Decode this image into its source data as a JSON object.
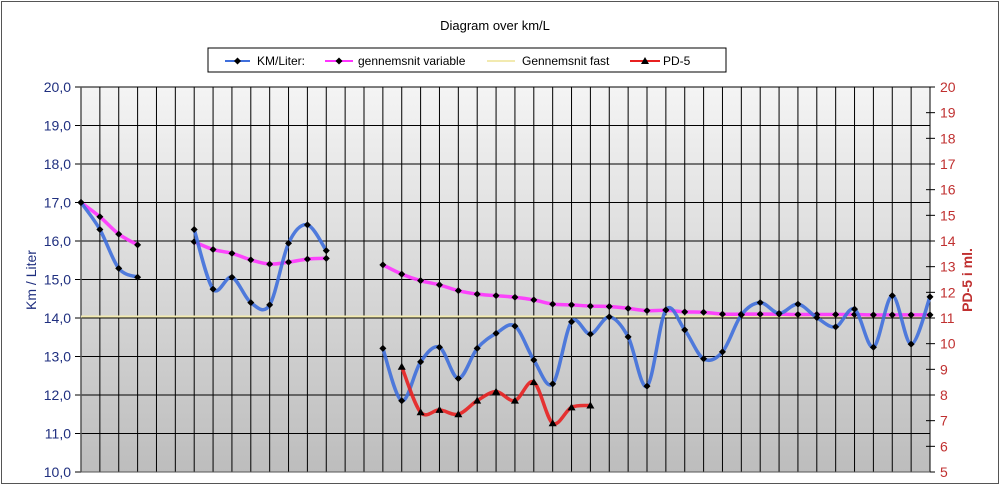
{
  "chart_data": {
    "type": "line",
    "title": "Diagram over km/L",
    "ylabel": "Km / Liter",
    "y2label": "PD-5 i ml.",
    "ylim": [
      10,
      20
    ],
    "y2lim": [
      5,
      20
    ],
    "yticks": [
      "10,0",
      "11,0",
      "12,0",
      "13,0",
      "14,0",
      "15,0",
      "16,0",
      "17,0",
      "18,0",
      "19,0",
      "20,0"
    ],
    "y2ticks": [
      "5",
      "6",
      "7",
      "8",
      "9",
      "10",
      "11",
      "12",
      "13",
      "14",
      "15",
      "16",
      "17",
      "18",
      "19",
      "20"
    ],
    "x_count": 46,
    "grid": true,
    "legend_position": "top",
    "colors": {
      "km": "#3f6fdc",
      "avg_var": "#ff33ff",
      "avg_fixed": "#f2eab0",
      "pd5": "#e82020",
      "axis_left": "#1f2f7f",
      "axis_right": "#c03030"
    },
    "series": [
      {
        "name": "KM/Liter:",
        "axis": "left",
        "marker": "diamond",
        "values": [
          17.0,
          16.3,
          15.29,
          15.06,
          null,
          null,
          16.3,
          14.75,
          15.06,
          14.4,
          14.34,
          15.94,
          16.42,
          15.75,
          null,
          null,
          13.21,
          11.85,
          12.86,
          13.24,
          12.43,
          13.21,
          13.6,
          13.79,
          12.91,
          12.29,
          13.9,
          13.58,
          14.03,
          13.51,
          12.23,
          14.21,
          13.69,
          12.94,
          13.12,
          14.08,
          14.4,
          14.12,
          14.36,
          14.01,
          13.77,
          14.23,
          13.24,
          14.58,
          13.32,
          14.55
        ]
      },
      {
        "name": "gennemsnit variable",
        "axis": "left",
        "marker": "diamond",
        "values": [
          17.0,
          16.63,
          16.18,
          15.9,
          null,
          null,
          15.98,
          15.78,
          15.68,
          15.51,
          15.4,
          15.45,
          15.53,
          15.55,
          null,
          null,
          15.38,
          15.14,
          14.97,
          14.86,
          14.71,
          14.62,
          14.58,
          14.54,
          14.47,
          14.36,
          14.34,
          14.31,
          14.3,
          14.25,
          14.19,
          14.2,
          14.16,
          14.15,
          14.1,
          14.1,
          14.1,
          14.1,
          14.09,
          14.09,
          14.09,
          14.09,
          14.08,
          14.08,
          14.08,
          14.08
        ]
      },
      {
        "name": "Gennemsnit fast",
        "axis": "left",
        "marker": "none",
        "constant": 14.04
      },
      {
        "name": "PD-5",
        "axis": "right",
        "marker": "triangle",
        "values": [
          null,
          null,
          null,
          null,
          null,
          null,
          null,
          null,
          null,
          null,
          null,
          null,
          null,
          null,
          null,
          null,
          null,
          9.1,
          7.33,
          7.42,
          7.25,
          7.78,
          8.13,
          7.78,
          8.5,
          6.9,
          7.52,
          7.59,
          null,
          null,
          null,
          null,
          null,
          null,
          null,
          null,
          null,
          null,
          null,
          null,
          null,
          null,
          null,
          null,
          null,
          null
        ]
      }
    ]
  }
}
